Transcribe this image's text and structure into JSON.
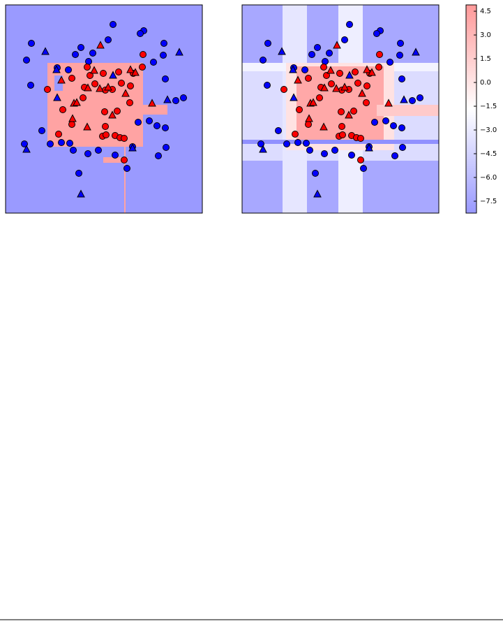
{
  "chart_data": [
    {
      "type": "scatter",
      "xlim": [
        0,
        282
      ],
      "ylim": [
        0,
        298
      ],
      "series": [
        {
          "color": "#0000ff",
          "marker": "o",
          "x": [
            154,
            198,
            193,
            37,
            147,
            108,
            100,
            125,
            227,
            226,
            30,
            119,
            212,
            74,
            90,
            36,
            229,
            255,
            244,
            52,
            27,
            64,
            80,
            92,
            97,
            118,
            133,
            157,
            182,
            190,
            206,
            217,
            229,
            219,
            230,
            174,
            105
          ],
          "values": [
            270,
            261,
            257,
            243,
            248,
            237,
            227,
            229,
            243,
            226,
            219,
            217,
            216,
            208,
            205,
            183,
            192,
            165,
            161,
            118,
            99,
            99,
            101,
            100,
            90,
            85,
            90,
            83,
            95,
            130,
            132,
            125,
            122,
            82,
            94,
            64,
            57
          ]
        },
        {
          "color": "#0000ff",
          "marker": "^",
          "x": [
            57,
            249,
            73,
            74,
            232,
            30,
            108,
            154,
            182
          ],
          "values": [
            231,
            230,
            205,
            165,
            162,
            91,
            27,
            197,
            93
          ]
        },
        {
          "color": "#ff0000",
          "marker": "o",
          "x": [
            60,
            117,
            140,
            95,
            183,
            113,
            128,
            143,
            153,
            166,
            179,
            197,
            178,
            111,
            82,
            142,
            160,
            76,
            95,
            143,
            139,
            157,
            164,
            170,
            144,
            170,
            121,
            196,
            162
          ],
          "values": [
            177,
            209,
            200,
            193,
            200,
            180,
            185,
            176,
            177,
            186,
            182,
            227,
            158,
            165,
            148,
            145,
            146,
            113,
            127,
            124,
            110,
            111,
            108,
            107,
            112,
            76,
            197,
            209,
            202
          ]
        },
        {
          "color": "#ff0000",
          "marker": "^",
          "x": [
            136,
            80,
            127,
            179,
            186,
            118,
            135,
            147,
            98,
            102,
            96,
            117,
            172,
            153,
            210
          ],
          "values": [
            240,
            190,
            204,
            205,
            201,
            179,
            178,
            180,
            157,
            158,
            135,
            123,
            171,
            140,
            157
          ]
        }
      ]
    },
    {
      "type": "scatter",
      "xlim": [
        0,
        282
      ],
      "ylim": [
        0,
        298
      ],
      "series": [
        {
          "color": "#0000ff",
          "marker": "o",
          "x": [
            154,
            198,
            193,
            37,
            147,
            108,
            100,
            125,
            227,
            226,
            30,
            119,
            212,
            74,
            90,
            36,
            229,
            255,
            244,
            52,
            27,
            64,
            80,
            92,
            97,
            118,
            133,
            157,
            182,
            190,
            206,
            217,
            229,
            219,
            230,
            174,
            105
          ],
          "values": [
            270,
            261,
            257,
            243,
            248,
            237,
            227,
            229,
            243,
            226,
            219,
            217,
            216,
            208,
            205,
            183,
            192,
            165,
            161,
            118,
            99,
            99,
            101,
            100,
            90,
            85,
            90,
            83,
            95,
            130,
            132,
            125,
            122,
            82,
            94,
            64,
            57
          ]
        },
        {
          "color": "#0000ff",
          "marker": "^",
          "x": [
            57,
            249,
            73,
            74,
            232,
            30,
            108,
            154,
            182
          ],
          "values": [
            231,
            230,
            205,
            165,
            162,
            91,
            27,
            197,
            93
          ]
        },
        {
          "color": "#ff0000",
          "marker": "o",
          "x": [
            60,
            117,
            140,
            95,
            183,
            113,
            128,
            143,
            153,
            166,
            179,
            197,
            178,
            111,
            82,
            142,
            160,
            76,
            95,
            143,
            139,
            157,
            164,
            170,
            144,
            170,
            121,
            196,
            162
          ],
          "values": [
            177,
            209,
            200,
            193,
            200,
            180,
            185,
            176,
            177,
            186,
            182,
            227,
            158,
            165,
            148,
            145,
            146,
            113,
            127,
            124,
            110,
            111,
            108,
            107,
            112,
            76,
            197,
            209,
            202
          ]
        },
        {
          "color": "#ff0000",
          "marker": "^",
          "x": [
            136,
            80,
            127,
            179,
            186,
            118,
            135,
            147,
            98,
            102,
            96,
            117,
            172,
            153,
            210
          ],
          "values": [
            240,
            190,
            204,
            205,
            201,
            179,
            178,
            180,
            157,
            158,
            135,
            123,
            171,
            140,
            157
          ]
        }
      ]
    },
    {
      "type": "colorbar",
      "ylim": [
        -8.25,
        4.9
      ],
      "colors": [
        "#9999ff",
        "#ffffff",
        "#ff9999"
      ],
      "yticks": [
        4.5,
        {
          "value": 3,
          "label": "3.0"
        },
        1.5,
        {
          "value": 0,
          "label": "0.0"
        },
        {
          "value": -1.5,
          "label": "−1.5"
        },
        {
          "value": -3,
          "label": "−3.0"
        },
        {
          "value": -4.5,
          "label": "−4.5"
        },
        {
          "value": -6,
          "label": "−6.0"
        },
        {
          "value": -7.5,
          "label": "−7.5"
        }
      ]
    }
  ]
}
